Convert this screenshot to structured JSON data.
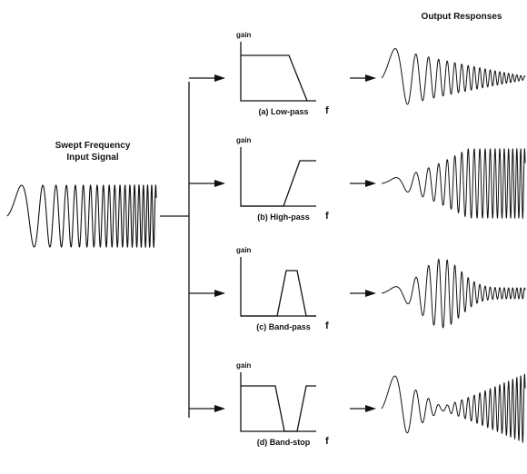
{
  "input": {
    "title_line1": "Swept Frequency",
    "title_line2": "Input Signal"
  },
  "output_title": "Output Responses",
  "filters": [
    {
      "key": "lowpass",
      "gain_label": "gain",
      "freq_label": "f",
      "caption": "(a) Low-pass"
    },
    {
      "key": "highpass",
      "gain_label": "gain",
      "freq_label": "f",
      "caption": "(b) High-pass"
    },
    {
      "key": "bandpass",
      "gain_label": "gain",
      "freq_label": "f",
      "caption": "(c) Band-pass"
    },
    {
      "key": "bandstop",
      "gain_label": "gain",
      "freq_label": "f",
      "caption": "(d) Band-stop"
    }
  ],
  "colors": {
    "ink": "#111111",
    "background": "#ffffff"
  }
}
